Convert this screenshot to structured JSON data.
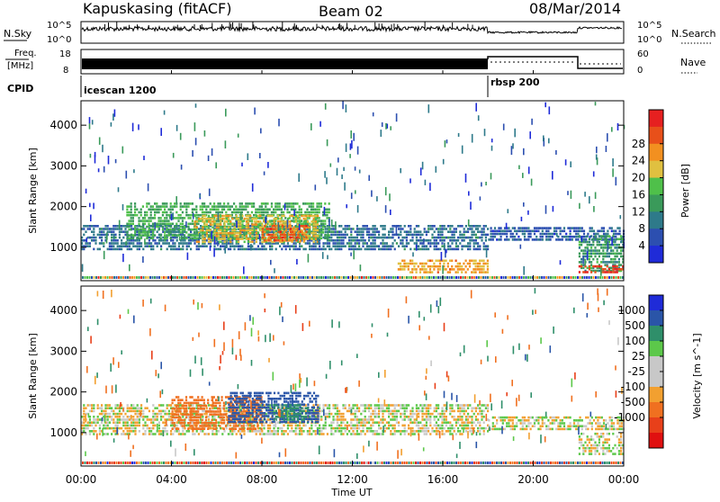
{
  "header": {
    "station": "Kapuskasing (fitACF)",
    "beam": "Beam 02",
    "date": "08/Mar/2014"
  },
  "top_panels": {
    "nsky_label": "N.Sky",
    "nsky_ticks": [
      "10^5",
      "10^0"
    ],
    "nsearch_label": "N.Search",
    "nsearch_ticks": [
      "10^5",
      "10^0"
    ],
    "freq_label_1": "Freq.",
    "freq_label_2": "[MHz]",
    "freq_ticks": [
      "18",
      "8"
    ],
    "nave_label": "Nave",
    "nave_ticks": [
      "60",
      "0"
    ],
    "cpid_label": "CPID",
    "cpid_modes": [
      {
        "name": "icescan 1200",
        "start_hour": 0
      },
      {
        "name": "rbsp 200",
        "start_hour": 18
      }
    ]
  },
  "colors": {
    "power_scale": [
      "#1f2bd8",
      "#2c4fb0",
      "#2e7a8a",
      "#3a9a5a",
      "#4fc04a",
      "#e0c040",
      "#f29020",
      "#e8501a",
      "#e62020"
    ],
    "velocity_scale": [
      "#1f2bd8",
      "#2a55a8",
      "#2f8f6a",
      "#5cc84a",
      "#c8c8c8",
      "#c8c8c8",
      "#f2a030",
      "#f07020",
      "#e8401a",
      "#e01010"
    ]
  },
  "chart_data": [
    {
      "type": "heatmap",
      "title": "",
      "xlabel": "Time UT",
      "ylabel": "Slant Range [km]",
      "x_ticks": [
        "00:00",
        "04:00",
        "08:00",
        "12:00",
        "16:00",
        "20:00",
        "00:00"
      ],
      "x_range_hours": [
        0,
        24
      ],
      "y_ticks": [
        "1000",
        "2000",
        "3000",
        "4000"
      ],
      "y_range_km": [
        180,
        4600
      ],
      "colorbar_label": "Power [dB]",
      "colorbar_ticks": [
        "4",
        "8",
        "12",
        "16",
        "20",
        "24",
        "28"
      ],
      "colorbar_range": [
        0,
        32
      ],
      "regions": [
        {
          "t0": 0.0,
          "t1": 18.0,
          "r0": 950,
          "r1": 1550,
          "level": 8
        },
        {
          "t0": 2.0,
          "t1": 11.0,
          "r0": 1200,
          "r1": 2100,
          "level": 14
        },
        {
          "t0": 5.0,
          "t1": 10.5,
          "r0": 1100,
          "r1": 1800,
          "level": 20
        },
        {
          "t0": 8.0,
          "t1": 10.0,
          "r0": 1150,
          "r1": 1550,
          "level": 26
        },
        {
          "t0": 18.0,
          "t1": 24.0,
          "r0": 1200,
          "r1": 1500,
          "level": 6
        },
        {
          "t0": 22.0,
          "t1": 24.0,
          "r0": 400,
          "r1": 1300,
          "level": 12
        },
        {
          "t0": 22.0,
          "t1": 24.0,
          "r0": 380,
          "r1": 560,
          "level": 28
        },
        {
          "t0": 14.0,
          "t1": 18.0,
          "r0": 400,
          "r1": 700,
          "level": 22
        }
      ]
    },
    {
      "type": "heatmap",
      "title": "",
      "xlabel": "Time UT",
      "ylabel": "Slant Range [km]",
      "x_ticks": [
        "00:00",
        "04:00",
        "08:00",
        "12:00",
        "16:00",
        "20:00",
        "00:00"
      ],
      "x_range_hours": [
        0,
        24
      ],
      "y_ticks": [
        "1000",
        "2000",
        "3000",
        "4000"
      ],
      "y_range_km": [
        180,
        4600
      ],
      "colorbar_label": "Velocity [m s^-1]",
      "colorbar_ticks": [
        "1000",
        "500",
        "100",
        "25",
        "-25",
        "-100",
        "-500",
        "-1000"
      ],
      "regions": [
        {
          "t0": 0.0,
          "t1": 18.0,
          "r0": 950,
          "r1": 1700,
          "vel": 0
        },
        {
          "t0": 4.0,
          "t1": 8.0,
          "r0": 1100,
          "r1": 1900,
          "vel": -200
        },
        {
          "t0": 6.5,
          "t1": 10.5,
          "r0": 1250,
          "r1": 2000,
          "vel": 800
        },
        {
          "t0": 8.5,
          "t1": 10.0,
          "r0": 1300,
          "r1": 1700,
          "vel": 300
        },
        {
          "t0": 18.0,
          "t1": 24.0,
          "r0": 1050,
          "r1": 1400,
          "vel": 0
        },
        {
          "t0": 22.0,
          "t1": 24.0,
          "r0": 500,
          "r1": 1000,
          "vel": 0
        }
      ]
    }
  ]
}
